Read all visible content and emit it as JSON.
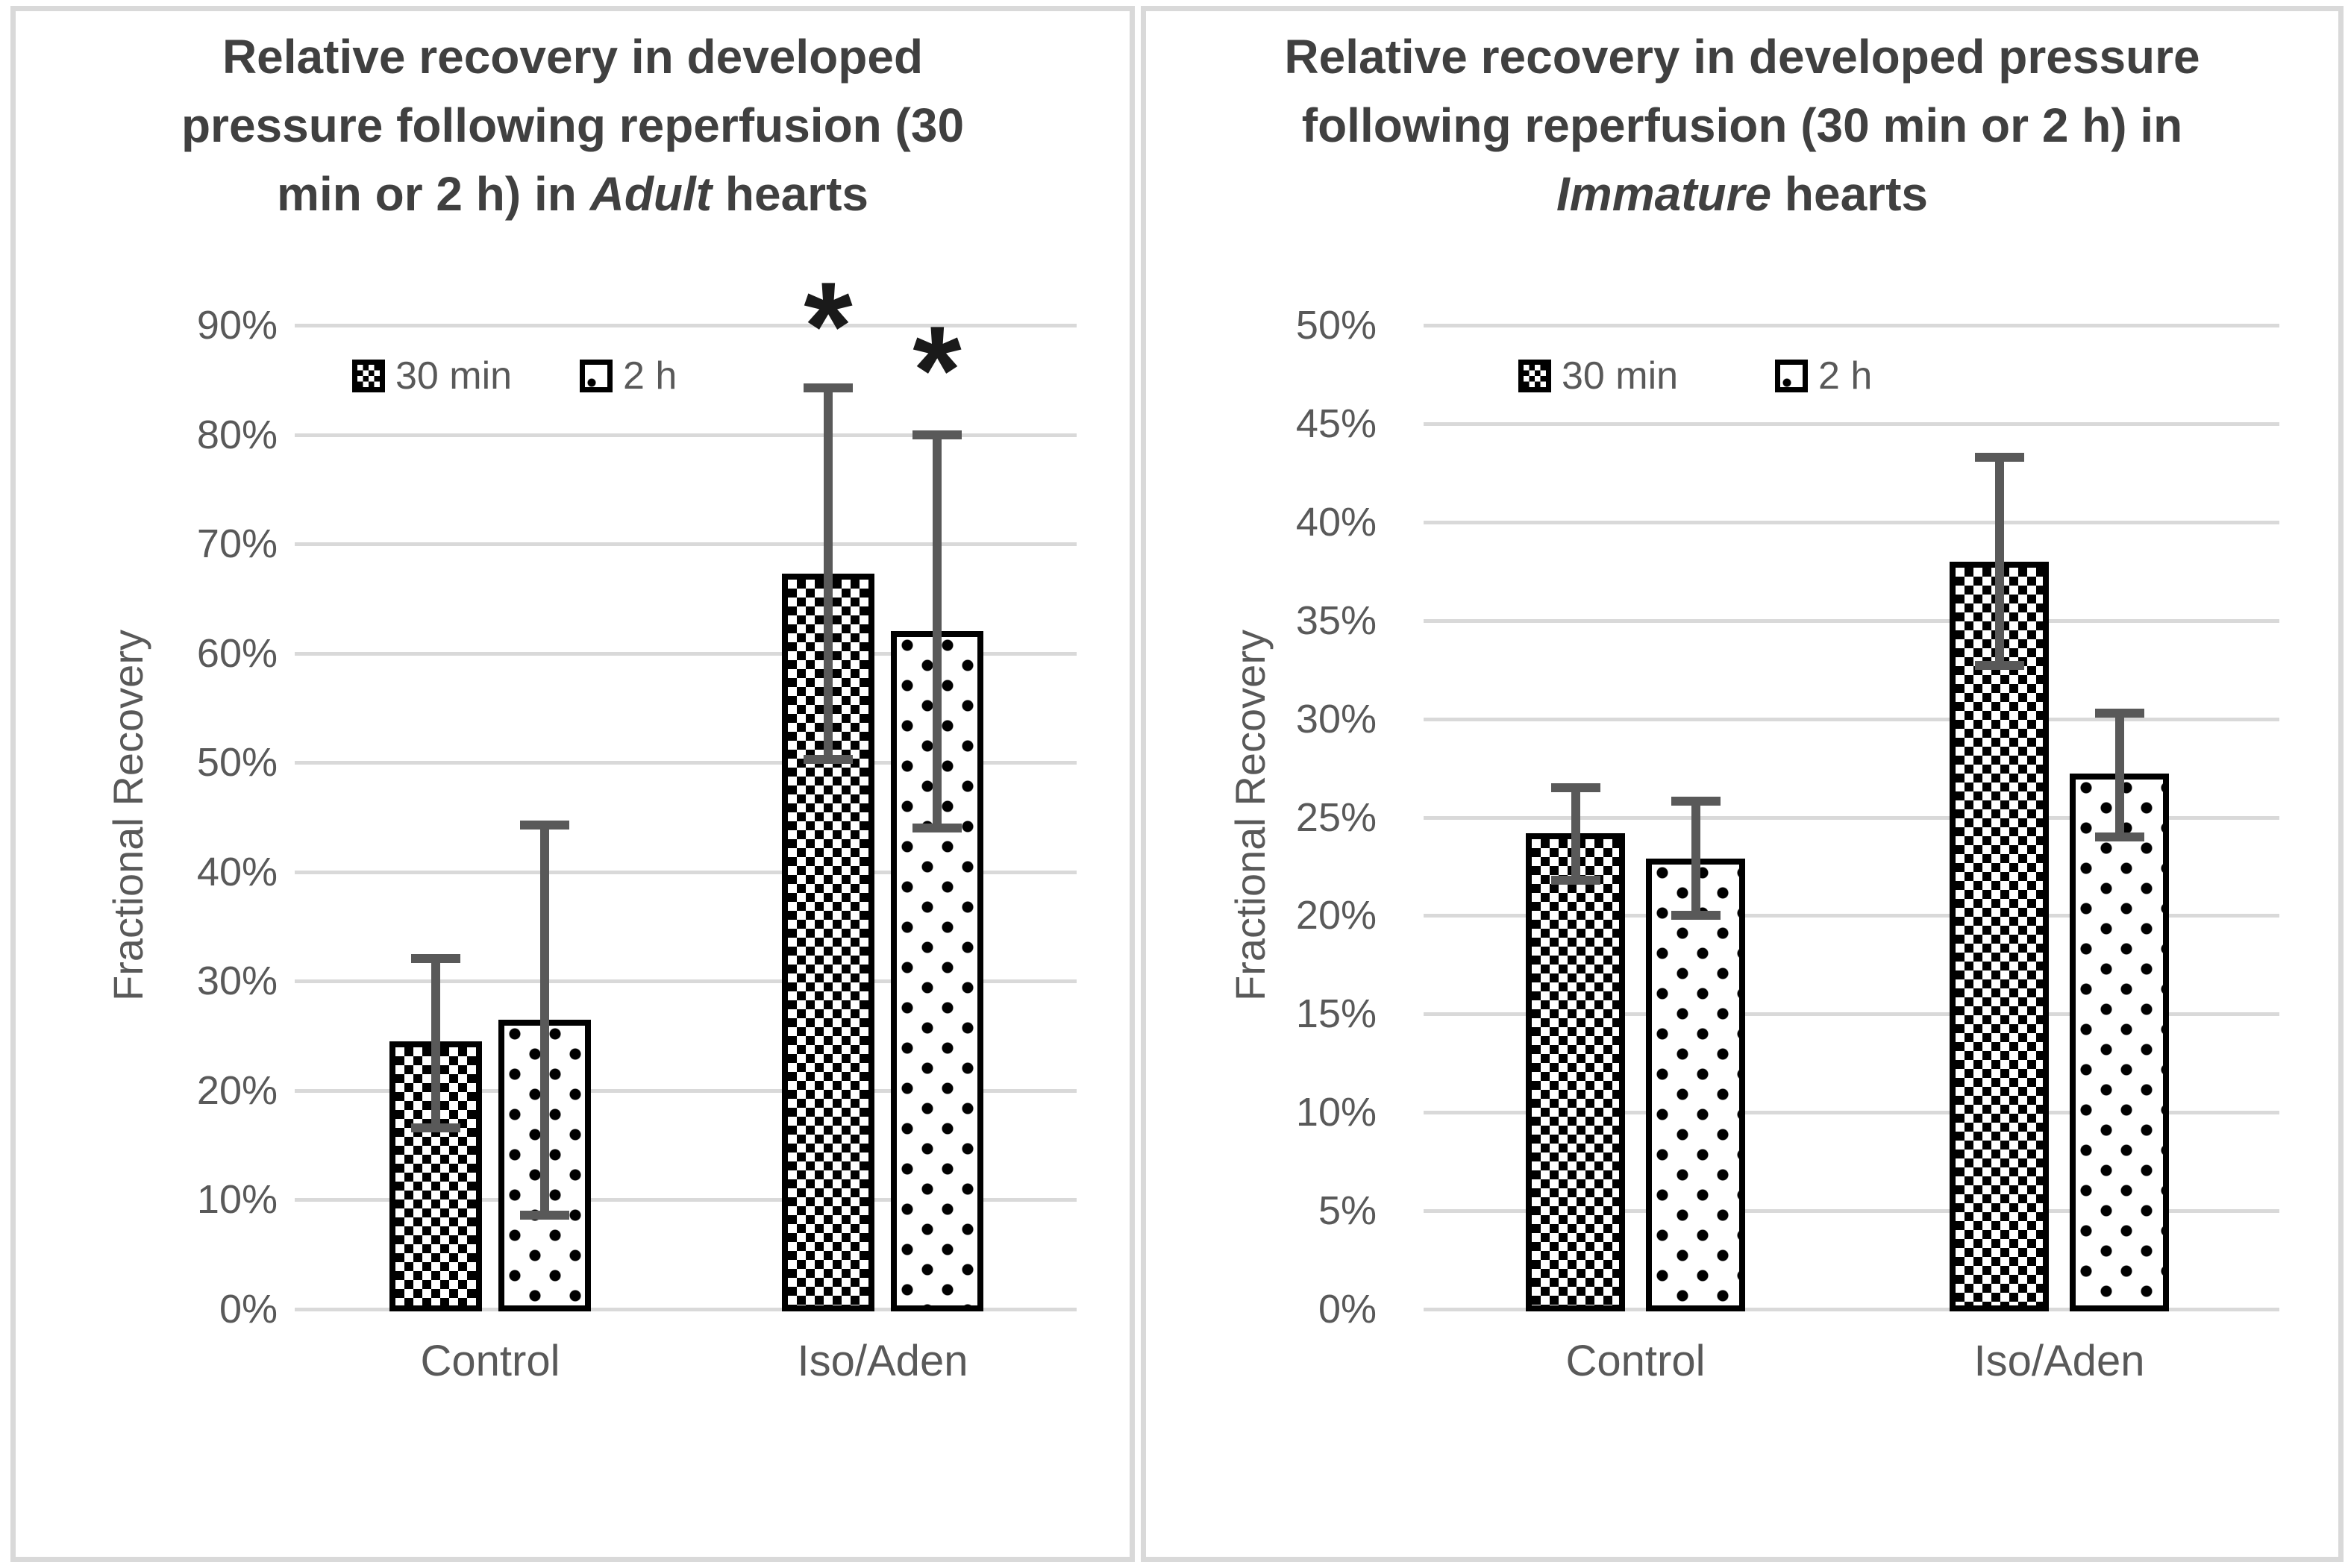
{
  "figure": {
    "background": "#ffffff",
    "panel_border_color": "#d9d9d9"
  },
  "colors": {
    "title_text": "#404040",
    "axis_text": "#595959",
    "gridline": "#d9d9d9",
    "error_bar": "#595959",
    "bar_outline": "#000000",
    "annotation": "#1a1a1a"
  },
  "chart_data": [
    {
      "type": "bar",
      "title": "Relative recovery in developed pressure following reperfusion (30 min or 2 h) in Adult hearts",
      "title_lines": [
        [
          {
            "t": "Relative recovery in developed"
          }
        ],
        [
          {
            "t": "pressure following reperfusion (30"
          }
        ],
        [
          {
            "t": "min or 2 h) in "
          },
          {
            "t": "Adult",
            "i": true
          },
          {
            "t": " hearts"
          }
        ]
      ],
      "ylabel": "Fractional Recovery",
      "xlabel": "",
      "categories": [
        "Control",
        "Iso/Aden"
      ],
      "series": [
        {
          "name": "30 min",
          "pattern": "checker",
          "values": [
            24.5,
            67.3
          ],
          "err_lo": [
            16.6,
            50.3
          ],
          "err_hi": [
            32.1,
            84.3
          ]
        },
        {
          "name": "2 h",
          "pattern": "dots",
          "values": [
            26.5,
            62.0
          ],
          "err_lo": [
            8.6,
            44.0
          ],
          "err_hi": [
            44.3,
            80.0
          ]
        }
      ],
      "ylim": [
        0,
        90
      ],
      "ytick_step": 10,
      "ytick_format": "percent",
      "grid": true,
      "legend_position": "top-left-inside",
      "annotations": [
        {
          "text": "*",
          "series": "30 min",
          "category": "Iso/Aden",
          "y": 91
        },
        {
          "text": "*",
          "series": "2 h",
          "category": "Iso/Aden",
          "y": 87
        }
      ]
    },
    {
      "type": "bar",
      "title": "Relative recovery in developed pressure following reperfusion (30 min or 2 h) in Immature hearts",
      "title_lines": [
        [
          {
            "t": "Relative recovery in developed pressure"
          }
        ],
        [
          {
            "t": "following reperfusion (30 min or 2 h) in"
          }
        ],
        [
          {
            "t": "Immature",
            "i": true
          },
          {
            "t": " hearts"
          }
        ]
      ],
      "ylabel": "Fractional Recovery",
      "xlabel": "",
      "categories": [
        "Control",
        "Iso/Aden"
      ],
      "series": [
        {
          "name": "30 min",
          "pattern": "checker",
          "values": [
            24.2,
            38.0
          ],
          "err_lo": [
            21.8,
            32.7
          ],
          "err_hi": [
            26.5,
            43.3
          ]
        },
        {
          "name": "2 h",
          "pattern": "dots",
          "values": [
            22.9,
            27.2
          ],
          "err_lo": [
            20.0,
            24.0
          ],
          "err_hi": [
            25.8,
            30.3
          ]
        }
      ],
      "ylim": [
        0,
        50
      ],
      "ytick_step": 5,
      "ytick_format": "percent",
      "grid": true,
      "legend_position": "top-left-inside",
      "annotations": []
    }
  ]
}
